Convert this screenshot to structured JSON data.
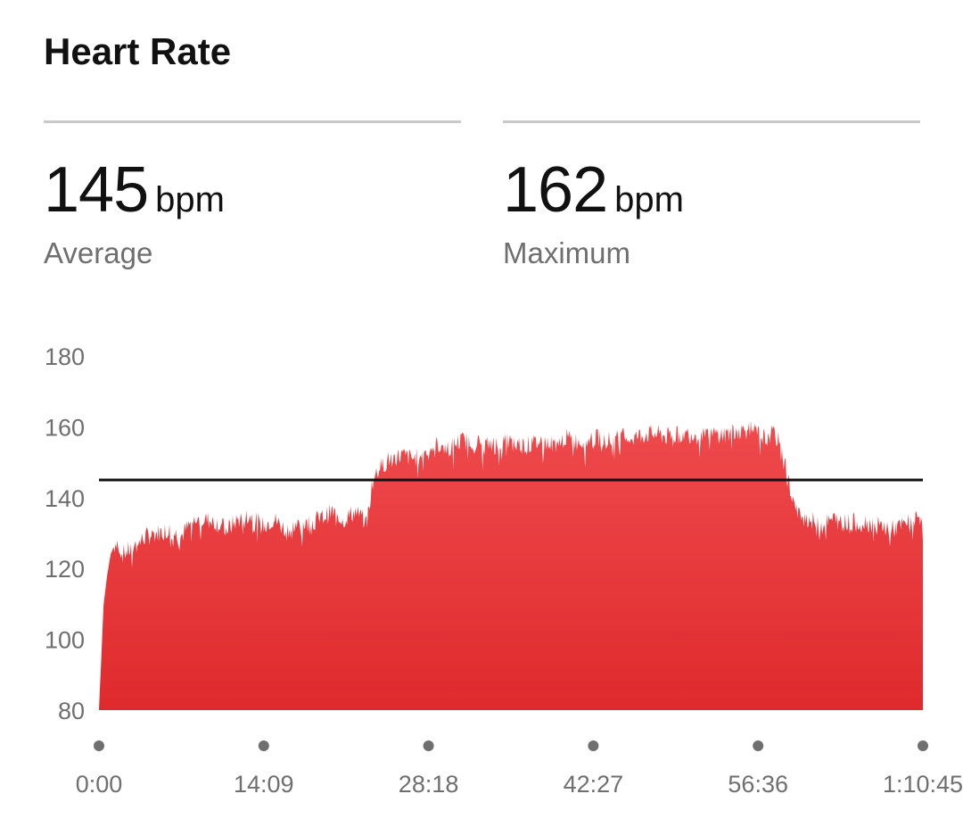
{
  "header": {
    "title": "Heart Rate"
  },
  "stats": [
    {
      "value": "145",
      "unit": "bpm",
      "label": "Average"
    },
    {
      "value": "162",
      "unit": "bpm",
      "label": "Maximum"
    }
  ],
  "colors": {
    "fill_top": "#ef4a4d",
    "fill_bottom": "#df2a2d",
    "average_line": "#111111",
    "axis_text": "#6f6f6f",
    "divider": "#c9c9c9"
  },
  "chart_data": {
    "type": "area",
    "title": "",
    "xlabel": "",
    "ylabel": "",
    "ylim": [
      80,
      180
    ],
    "yticks": [
      "80",
      "100",
      "120",
      "140",
      "160",
      "180"
    ],
    "xticks": [
      "0:00",
      "14:09",
      "28:18",
      "42:27",
      "56:36",
      "1:10:45"
    ],
    "grid": false,
    "average_line": 145,
    "x_unit": "minutes",
    "x": [
      0,
      0.4,
      0.7,
      1,
      1.5,
      2,
      3,
      4,
      5,
      6,
      7,
      8,
      9,
      10,
      11,
      12,
      13,
      14,
      15,
      16,
      17,
      18,
      19,
      20,
      21,
      22,
      23,
      23.5,
      24,
      25,
      26,
      27,
      28,
      29,
      30,
      31,
      32,
      33,
      34,
      35,
      36,
      37,
      38,
      39,
      40,
      41,
      42,
      43,
      44,
      45,
      46,
      47,
      48,
      49,
      50,
      51,
      52,
      53,
      54,
      55,
      56,
      57,
      58,
      58.5,
      59,
      59.5,
      60,
      61,
      62,
      63,
      64,
      65,
      66,
      67,
      68,
      69,
      70,
      70.75
    ],
    "values": [
      80,
      110,
      118,
      124,
      128,
      124,
      126,
      129,
      130,
      131,
      129,
      133,
      134,
      133,
      131,
      134,
      135,
      132,
      134,
      131,
      132,
      133,
      134,
      136,
      134,
      136,
      133,
      145,
      148,
      151,
      152,
      151,
      153,
      155,
      154,
      156,
      156,
      155,
      155,
      156,
      155,
      155,
      156,
      155,
      157,
      156,
      156,
      157,
      156,
      157,
      157,
      158,
      158,
      157,
      158,
      158,
      157,
      158,
      158,
      159,
      159,
      157,
      158,
      155,
      148,
      140,
      135,
      134,
      132,
      134,
      133,
      133,
      133,
      132,
      131,
      132,
      134,
      135
    ]
  }
}
